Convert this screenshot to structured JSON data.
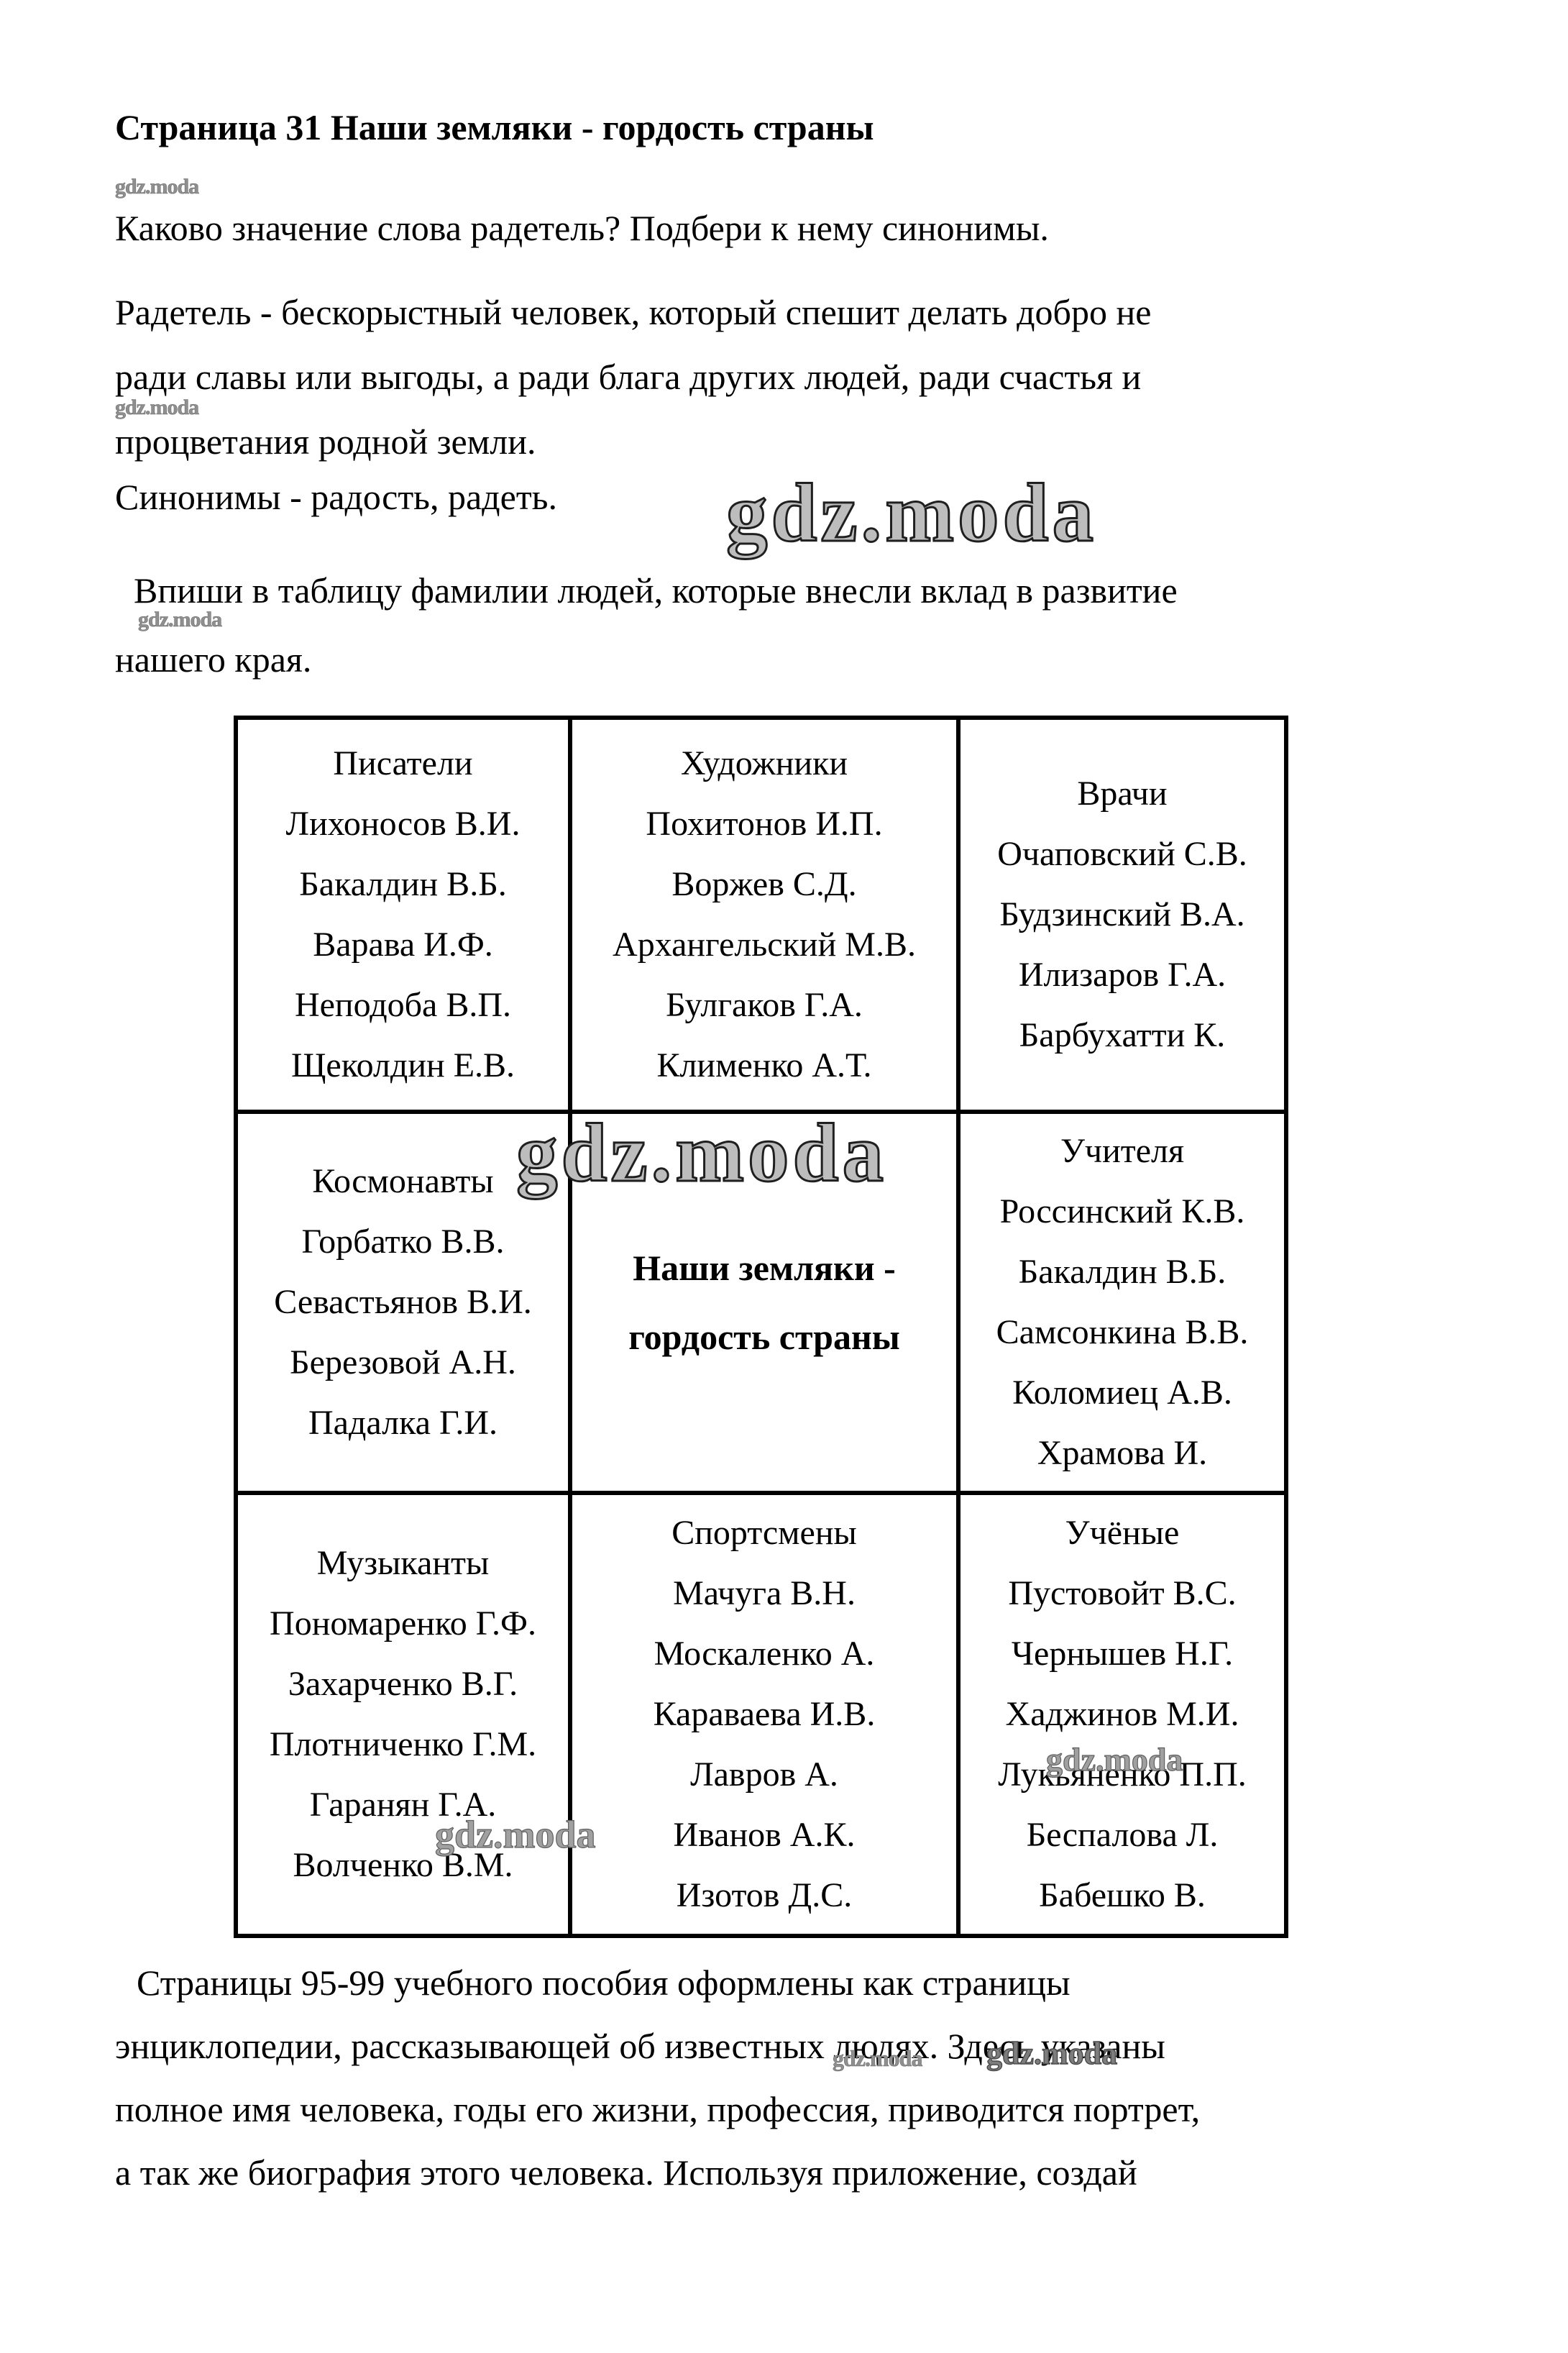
{
  "watermark": {
    "text": "gdz.moda"
  },
  "page": {
    "title": "Страница 31 Наши земляки - гордость страны",
    "question": "Каково значение слова радетель? Подбери к нему синонимы.",
    "definition_lines": [
      "Радетель - бескорыстный человек, который спешит делать добро не",
      "ради славы или выгоды, а ради блага других людей, ради счастья и",
      "процветания родной земли."
    ],
    "synonyms_line": "Синонимы - радость, радеть.",
    "task_lines": [
      "Впиши в таблицу фамилии людей, которые внесли вклад в развитие",
      "нашего края."
    ],
    "footer_lines": [
      "Страницы 95-99 учебного пособия оформлены как страницы",
      "энциклопедии, рассказывающей об известных людях. Здесь указаны",
      "полное имя человека, годы его жизни, профессия, приводится портрет,",
      "а так же биография этого человека. Используя приложение, создай"
    ]
  },
  "table": {
    "rows": [
      [
        {
          "category": "Писатели",
          "names": [
            "Лихоносов В.И.",
            "Бакалдин В.Б.",
            "Варава И.Ф.",
            "Неподоба В.П.",
            "Щеколдин Е.В."
          ]
        },
        {
          "category": "Художники",
          "names": [
            "Похитонов И.П.",
            "Воржев С.Д.",
            "Архангельский М.В.",
            "Булгаков Г.А.",
            "Клименко А.Т."
          ]
        },
        {
          "category": "Врачи",
          "names": [
            "Очаповский С.В.",
            "Будзинский В.А.",
            "Илизаров Г.А.",
            "Барбухатти К."
          ]
        }
      ],
      [
        {
          "category": "Космонавты",
          "names": [
            "Горбатко В.В.",
            "Севастьянов В.И.",
            "Березовой А.Н.",
            "Падалка Г.И."
          ]
        },
        {
          "title_lines": [
            "Наши земляки -",
            "гордость страны"
          ]
        },
        {
          "category": "Учителя",
          "names": [
            "Россинский К.В.",
            "Бакалдин В.Б.",
            "Самсонкина В.В.",
            "Коломиец А.В.",
            "Храмова И."
          ]
        }
      ],
      [
        {
          "category": "Музыканты",
          "names": [
            "Пономаренко Г.Ф.",
            "Захарченко В.Г.",
            "Плотниченко Г.М.",
            "Гаранян Г.А.",
            "Волченко В.М."
          ]
        },
        {
          "category": "Спортсмены",
          "names": [
            "Мачуга В.Н.",
            "Москаленко А.",
            "Караваева И.В.",
            "Лавров А.",
            "Иванов А.К.",
            "Изотов Д.С."
          ]
        },
        {
          "category": "Учёные",
          "names": [
            "Пустовойт В.С.",
            "Чернышев Н.Г.",
            "Хаджинов М.И.",
            "Лукьяненко П.П.",
            "Беспалова Л.",
            "Бабешко В."
          ]
        }
      ]
    ]
  }
}
